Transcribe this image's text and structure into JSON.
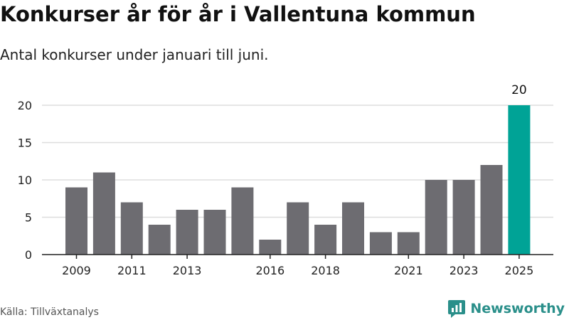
{
  "title": "Konkurser år för år i Vallentuna kommun",
  "subtitle": "Antal konkurser under januari till juni.",
  "source": "Källa: Tillväxtanalys",
  "brand": {
    "name": "Newsworthy",
    "icon": "newsworthy-logo-icon"
  },
  "colors": {
    "bar": "#6d6c71",
    "highlight": "#00a396",
    "grid": "#dddddd",
    "axis": "#222222",
    "brand": "#2a8f8a"
  },
  "chart_data": {
    "type": "bar",
    "categories": [
      "2009",
      "2010",
      "2011",
      "2012",
      "2013",
      "2014",
      "2015",
      "2016",
      "2017",
      "2018",
      "2019",
      "2020",
      "2021",
      "2022",
      "2023",
      "2024",
      "2025"
    ],
    "values": [
      9,
      11,
      7,
      4,
      6,
      6,
      9,
      2,
      7,
      4,
      7,
      3,
      3,
      10,
      10,
      12,
      20
    ],
    "tick_labels": [
      "2009",
      "2011",
      "2013",
      "2016",
      "2018",
      "2021",
      "2023",
      "2025"
    ],
    "highlight_category": "2025",
    "data_labels": [
      {
        "category": "2025",
        "text": "20"
      }
    ],
    "yticks": [
      0,
      5,
      10,
      15,
      20
    ],
    "ylim": [
      0,
      20
    ],
    "xlabel": "",
    "ylabel": "",
    "grid": true,
    "legend": "none"
  }
}
